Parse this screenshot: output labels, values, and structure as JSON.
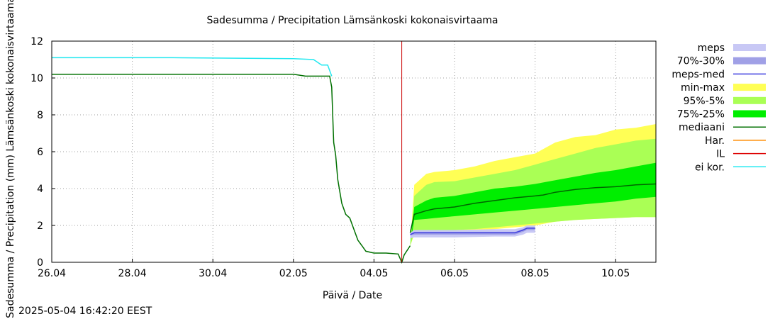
{
  "chart_data": {
    "type": "line",
    "title": "Sadesumma / Precipitation  Lämsänkoski kokonaisvirtaama",
    "ylabel": "Sadesumma / Precipitation (mm)  Lämsänkoski kokonaisvirtaama",
    "xlabel": "Päivä / Date",
    "timestamp": "2025-05-04 16:42:20 EEST",
    "xlim": [
      0,
      15
    ],
    "ylim": [
      0,
      12
    ],
    "grid": true,
    "x_ticks": [
      {
        "x": 0,
        "label": "26.04"
      },
      {
        "x": 2,
        "label": "28.04"
      },
      {
        "x": 4,
        "label": "30.04"
      },
      {
        "x": 6,
        "label": "02.05"
      },
      {
        "x": 8,
        "label": "04.05"
      },
      {
        "x": 10,
        "label": "06.05"
      },
      {
        "x": 12,
        "label": "08.05"
      },
      {
        "x": 14,
        "label": "10.05"
      }
    ],
    "y_ticks": [
      0,
      2,
      4,
      6,
      8,
      10,
      12
    ],
    "forecast_start": 8.69,
    "legend": [
      {
        "label": "meps",
        "color": "#c8c8f5",
        "style": "box"
      },
      {
        "label": "70%-30%",
        "color": "#a0a0e6",
        "style": "box"
      },
      {
        "label": "meps-med",
        "color": "#4040e0",
        "style": "line"
      },
      {
        "label": "min-max",
        "color": "#ffff55",
        "style": "box"
      },
      {
        "label": "95%-5%",
        "color": "#aaff55",
        "style": "box"
      },
      {
        "label": "75%-25%",
        "color": "#00ee00",
        "style": "box"
      },
      {
        "label": "mediaani",
        "color": "#007000",
        "style": "line"
      },
      {
        "label": "Har.",
        "color": "#ff8c00",
        "style": "line"
      },
      {
        "label": "IL",
        "color": "#dd0000",
        "style": "line"
      },
      {
        "label": "ei kor.",
        "color": "#22e8f0",
        "style": "line"
      }
    ],
    "series": [
      {
        "name": "ei kor.",
        "color": "#22e8f0",
        "x": [
          0,
          3,
          6,
          6.5,
          6.7,
          6.85,
          6.95
        ],
        "y": [
          11.1,
          11.1,
          11.05,
          11.0,
          10.7,
          10.7,
          10.1
        ]
      },
      {
        "name": "mediaani (observed)",
        "color": "#007000",
        "x": [
          0,
          6,
          6.3,
          6.9,
          6.95,
          7.0,
          7.05,
          7.1,
          7.2,
          7.3,
          7.4,
          7.5,
          7.6,
          7.7,
          7.8,
          8.0,
          8.3,
          8.6,
          8.69,
          8.75,
          8.9
        ],
        "y": [
          10.2,
          10.2,
          10.1,
          10.1,
          9.5,
          6.5,
          5.8,
          4.5,
          3.2,
          2.6,
          2.4,
          1.8,
          1.2,
          0.9,
          0.6,
          0.5,
          0.5,
          0.45,
          0.0,
          0.4,
          0.9
        ]
      },
      {
        "name": "mediaani (forecast)",
        "color": "#006600",
        "x": [
          8.9,
          9.0,
          9.3,
          9.5,
          10,
          10.5,
          11,
          11.5,
          12,
          12.2,
          12.5,
          13,
          13.5,
          14,
          14.5,
          15
        ],
        "y": [
          1.6,
          2.6,
          2.8,
          2.9,
          3.0,
          3.2,
          3.35,
          3.5,
          3.6,
          3.65,
          3.8,
          3.95,
          4.05,
          4.1,
          4.2,
          4.25
        ]
      },
      {
        "name": "meps-med",
        "color": "#4040e0",
        "x": [
          8.9,
          9.0,
          9.5,
          10,
          11,
          11.5,
          11.7,
          11.8,
          12.0
        ],
        "y": [
          1.5,
          1.6,
          1.6,
          1.6,
          1.6,
          1.6,
          1.75,
          1.85,
          1.85
        ]
      }
    ],
    "bands": [
      {
        "name": "min-max",
        "color": "#ffff55",
        "x": [
          8.75,
          8.9,
          9.0,
          9.3,
          9.5,
          10,
          10.5,
          11,
          11.5,
          12,
          12.5,
          13,
          13.5,
          14,
          14.5,
          15
        ],
        "lower": [
          0.4,
          0.9,
          1.5,
          1.5,
          1.6,
          1.6,
          1.7,
          1.8,
          1.9,
          2.0,
          2.2,
          2.3,
          2.35,
          2.4,
          2.45,
          2.45
        ],
        "upper": [
          0.4,
          0.9,
          4.2,
          4.8,
          4.9,
          5.0,
          5.2,
          5.5,
          5.7,
          5.9,
          6.5,
          6.8,
          6.9,
          7.2,
          7.3,
          7.5
        ]
      },
      {
        "name": "95%-5%",
        "color": "#aaff55",
        "x": [
          8.75,
          8.9,
          9.0,
          9.3,
          9.5,
          10,
          10.5,
          11,
          11.5,
          12,
          12.5,
          13,
          13.5,
          14,
          14.5,
          15
        ],
        "lower": [
          0.4,
          0.9,
          1.6,
          1.6,
          1.7,
          1.75,
          1.8,
          1.9,
          2.0,
          2.1,
          2.2,
          2.3,
          2.35,
          2.4,
          2.45,
          2.45
        ],
        "upper": [
          0.4,
          0.9,
          3.6,
          4.2,
          4.35,
          4.4,
          4.6,
          4.8,
          5.0,
          5.3,
          5.6,
          5.9,
          6.2,
          6.4,
          6.6,
          6.7
        ]
      },
      {
        "name": "75%-25%",
        "color": "#00ee00",
        "x": [
          8.75,
          8.9,
          9.0,
          9.3,
          9.5,
          10,
          10.5,
          11,
          11.5,
          12,
          12.5,
          13,
          13.5,
          14,
          14.5,
          15
        ],
        "lower": [
          0.4,
          0.9,
          2.3,
          2.35,
          2.4,
          2.5,
          2.6,
          2.7,
          2.8,
          2.9,
          3.0,
          3.1,
          3.2,
          3.3,
          3.45,
          3.55
        ],
        "upper": [
          0.4,
          0.9,
          3.0,
          3.35,
          3.5,
          3.6,
          3.8,
          4.0,
          4.1,
          4.25,
          4.45,
          4.65,
          4.85,
          5.0,
          5.2,
          5.4
        ]
      },
      {
        "name": "meps",
        "color": "#c8c8f5",
        "x": [
          8.9,
          9.0,
          9.5,
          10,
          11,
          11.5,
          11.7,
          11.8,
          12.0
        ],
        "lower": [
          1.3,
          1.35,
          1.35,
          1.35,
          1.4,
          1.4,
          1.5,
          1.6,
          1.6
        ],
        "upper": [
          1.6,
          1.75,
          1.75,
          1.75,
          1.8,
          1.8,
          1.9,
          2.0,
          2.0
        ]
      },
      {
        "name": "70%-30%",
        "color": "#a0a0e6",
        "x": [
          8.9,
          9.0,
          9.5,
          10,
          11,
          11.5,
          11.7,
          11.8,
          12.0
        ],
        "lower": [
          1.45,
          1.5,
          1.5,
          1.5,
          1.5,
          1.5,
          1.65,
          1.75,
          1.75
        ],
        "upper": [
          1.55,
          1.65,
          1.65,
          1.65,
          1.65,
          1.65,
          1.8,
          1.9,
          1.9
        ]
      }
    ]
  }
}
